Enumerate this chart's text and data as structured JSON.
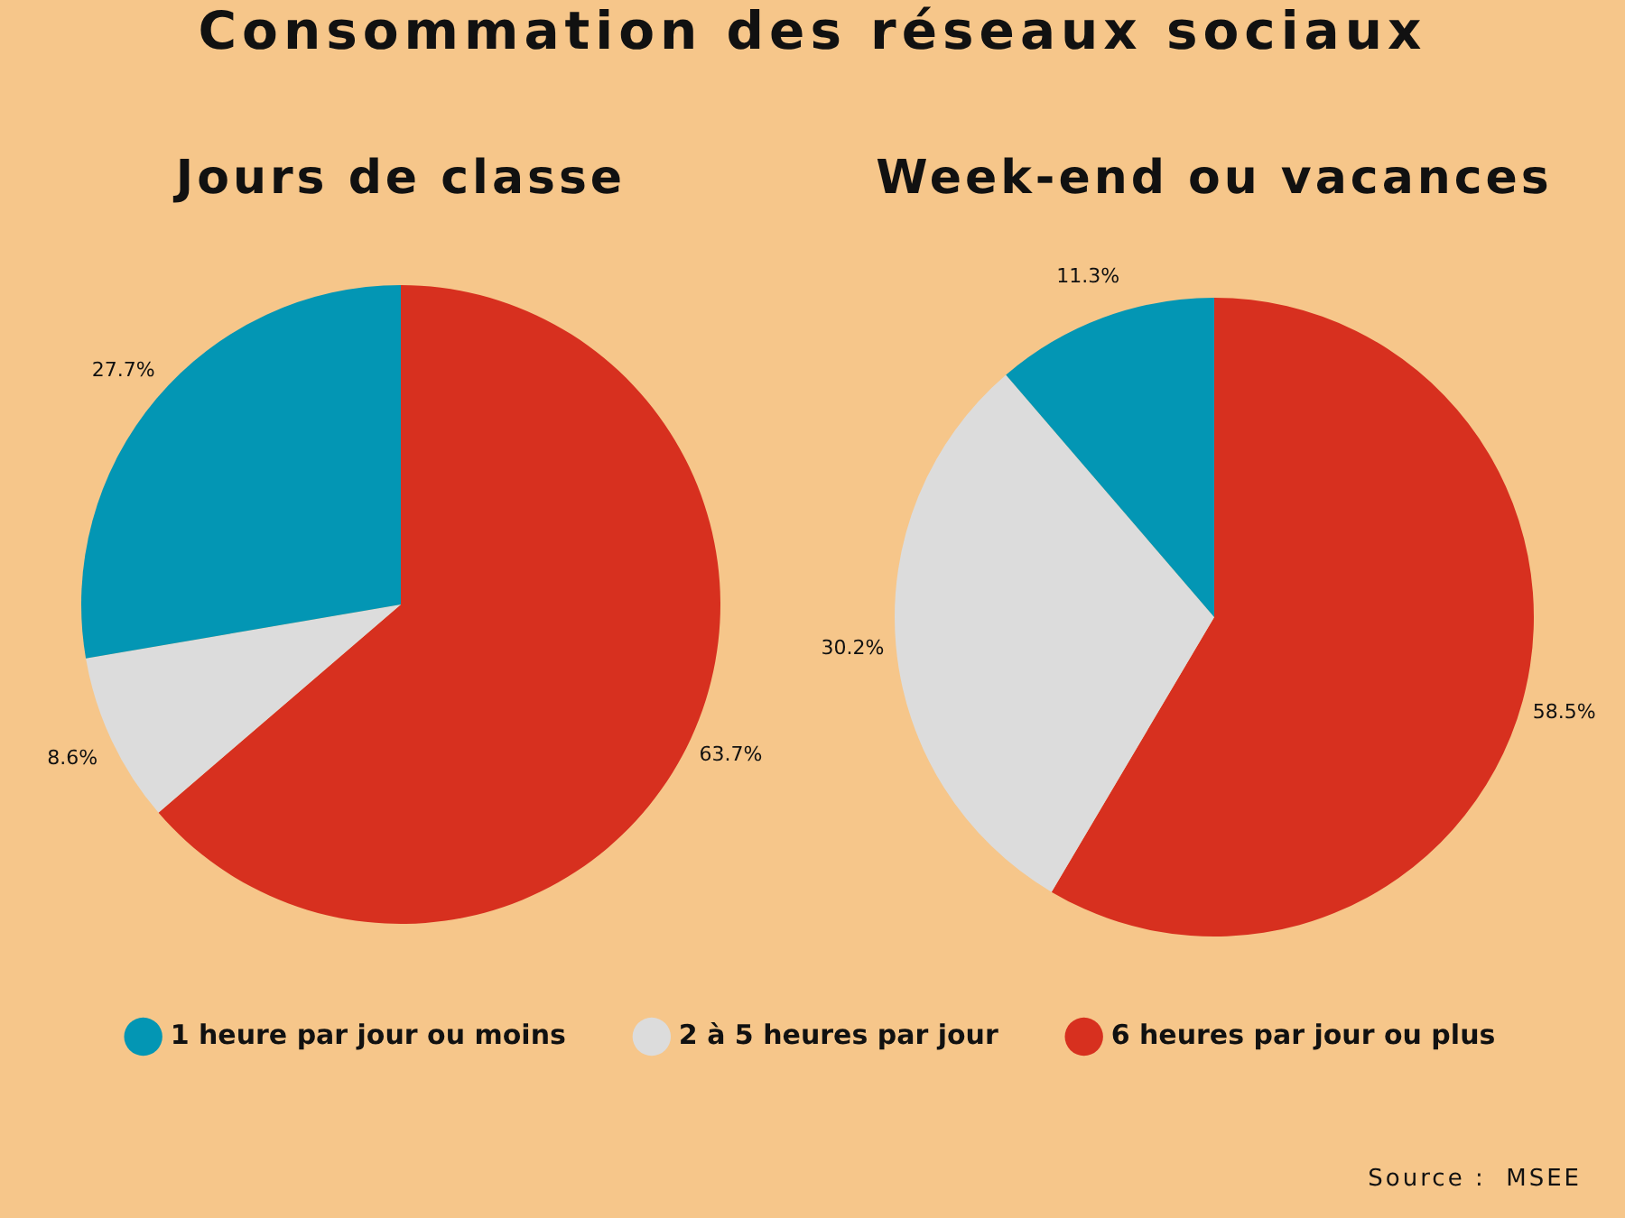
{
  "chart_data": {
    "type": "pie",
    "title": "Consommation des réseaux sociaux",
    "categories": [
      "1 heure par jour ou moins",
      "2 à 5 heures par jour",
      "6 heures par jour ou plus"
    ],
    "colors": [
      "#0396b4",
      "#dcdcdc",
      "#d7301f"
    ],
    "series": [
      {
        "name": "Jours de classe",
        "values": [
          27.7,
          8.6,
          63.7
        ],
        "value_labels": [
          "27.7%",
          "8.6%",
          "63.7%"
        ]
      },
      {
        "name": "Week-end ou vacances",
        "values": [
          11.3,
          30.2,
          58.5
        ],
        "value_labels": [
          "11.3%",
          "30.2%",
          "58.5%"
        ]
      }
    ],
    "legend": "bottom",
    "annotations": [
      "Source :  MSEE"
    ]
  }
}
